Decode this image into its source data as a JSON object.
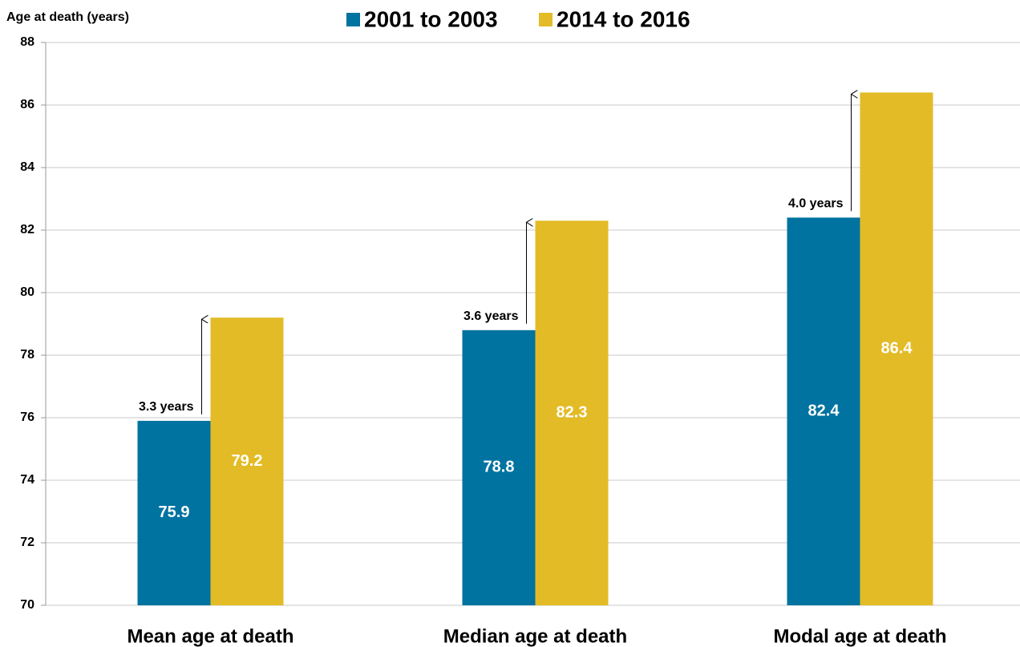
{
  "chart_data": {
    "type": "bar",
    "y_axis_label": "Age at death (years)",
    "categories": [
      "Mean age at death",
      "Median age at death",
      "Modal age at death"
    ],
    "series": [
      {
        "name": "2001 to 2003",
        "color": "#0073a0",
        "values": [
          75.9,
          78.8,
          82.4
        ]
      },
      {
        "name": "2014 to 2016",
        "color": "#e3bb26",
        "values": [
          79.2,
          82.3,
          86.4
        ]
      }
    ],
    "annotations": [
      "3.3 years",
      "3.6 years",
      "4.0 years"
    ],
    "ylim": [
      70,
      88
    ],
    "yticks": [
      70,
      72,
      74,
      76,
      78,
      80,
      82,
      84,
      86,
      88
    ],
    "grid": true,
    "legend": "top"
  }
}
